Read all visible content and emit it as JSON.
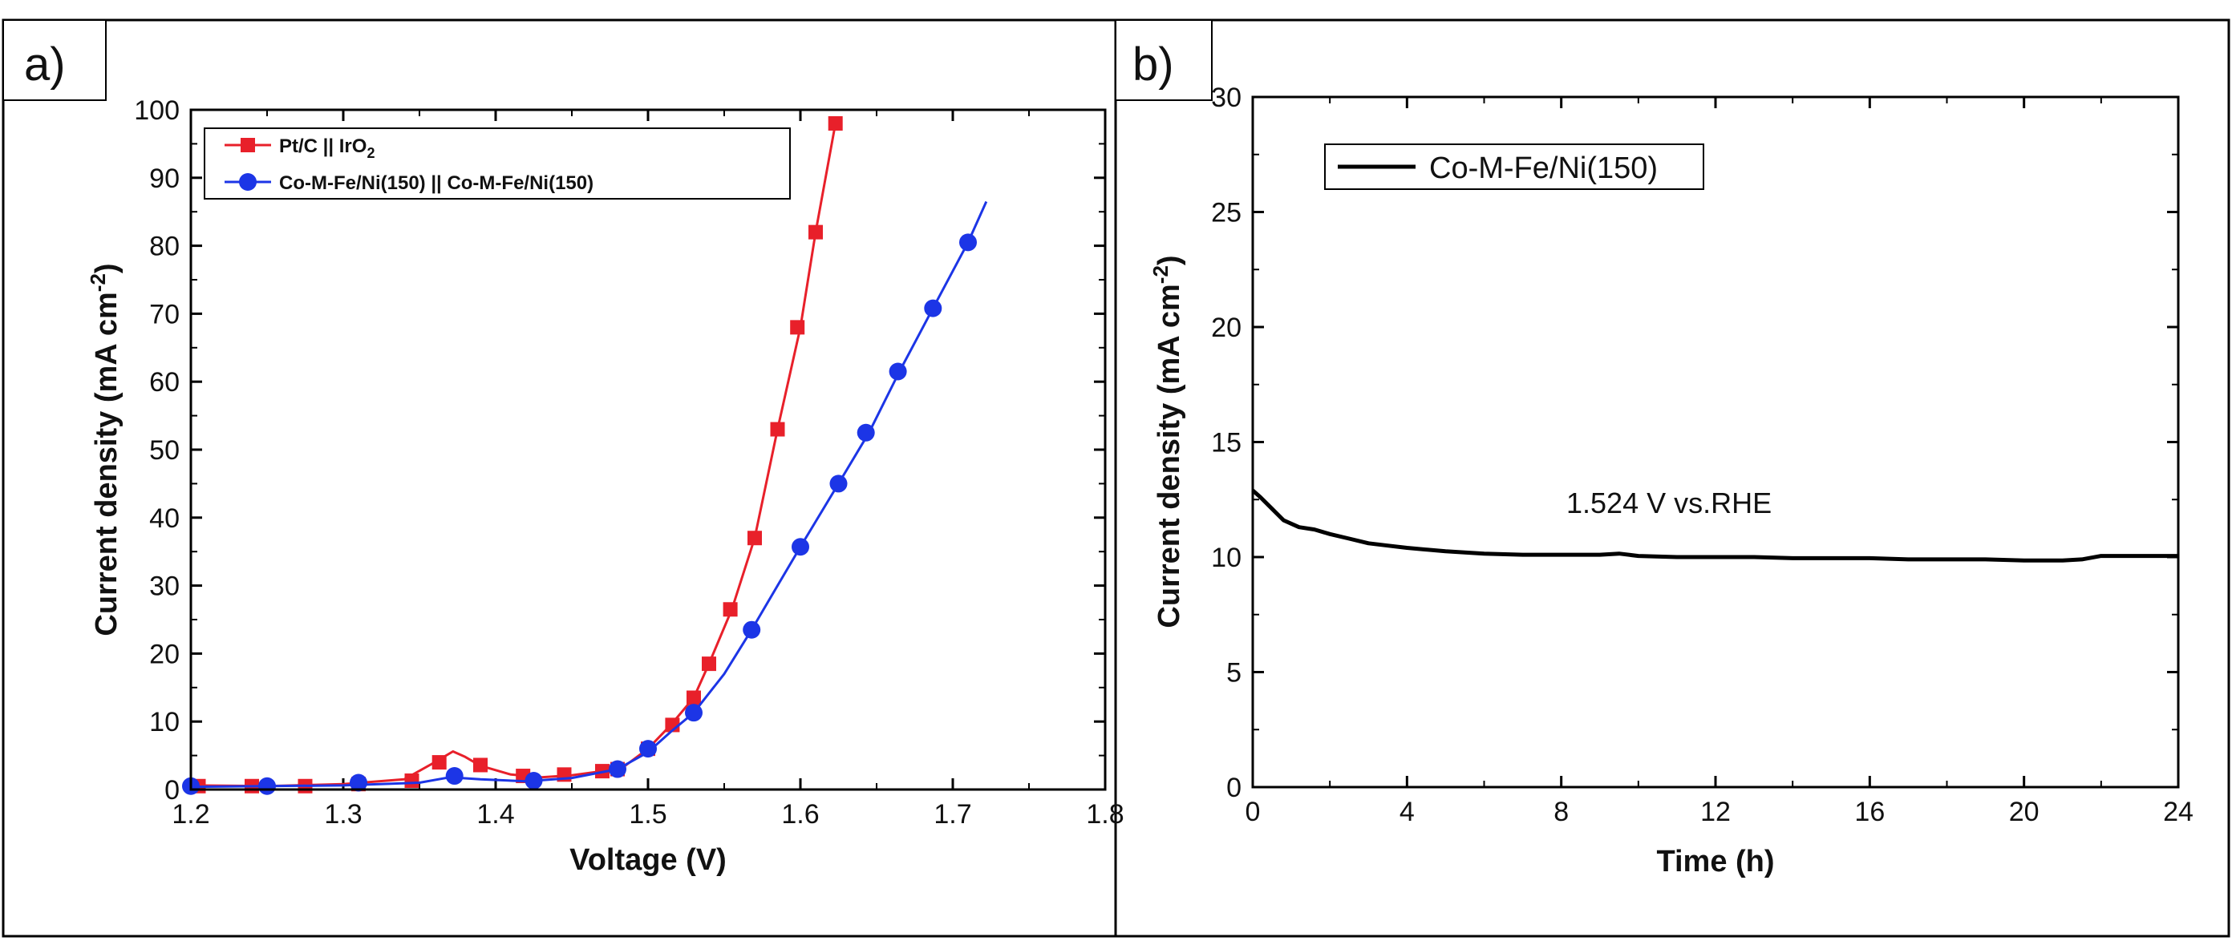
{
  "chart_data": [
    {
      "type": "line",
      "panel_label": "a)",
      "xlabel": "Voltage (V)",
      "ylabel": "Current density (mA cm",
      "ylabel_sup": "-2",
      "ylabel_close": ")",
      "xlim": [
        1.2,
        1.8
      ],
      "ylim": [
        0,
        100
      ],
      "xticks": [
        "1.2",
        "1.3",
        "1.4",
        "1.5",
        "1.6",
        "1.7",
        "1.8"
      ],
      "yticks": [
        "0",
        "10",
        "20",
        "30",
        "40",
        "50",
        "60",
        "70",
        "80",
        "90",
        "100"
      ],
      "legend_position": "top-left",
      "series": [
        {
          "name": "Pt/C || IrO",
          "name_sub": "2",
          "color": "#e8202a",
          "marker": "square",
          "line": [
            [
              1.2,
              0.6
            ],
            [
              1.25,
              0.5
            ],
            [
              1.3,
              0.8
            ],
            [
              1.34,
              1.5
            ],
            [
              1.36,
              4.0
            ],
            [
              1.372,
              5.6
            ],
            [
              1.38,
              4.8
            ],
            [
              1.39,
              3.5
            ],
            [
              1.41,
              2.2
            ],
            [
              1.43,
              1.8
            ],
            [
              1.45,
              2.1
            ],
            [
              1.47,
              2.7
            ],
            [
              1.485,
              3.5
            ],
            [
              1.5,
              6.0
            ],
            [
              1.515,
              9.5
            ],
            [
              1.53,
              13.5
            ],
            [
              1.54,
              18.5
            ],
            [
              1.555,
              26.5
            ],
            [
              1.57,
              37.0
            ],
            [
              1.585,
              53.0
            ],
            [
              1.6,
              68.0
            ],
            [
              1.61,
              82.0
            ],
            [
              1.623,
              98.0
            ]
          ],
          "markers": [
            [
              1.205,
              0.5
            ],
            [
              1.24,
              0.5
            ],
            [
              1.275,
              0.5
            ],
            [
              1.31,
              0.8
            ],
            [
              1.345,
              1.3
            ],
            [
              1.363,
              4.0
            ],
            [
              1.39,
              3.6
            ],
            [
              1.418,
              2.0
            ],
            [
              1.445,
              2.2
            ],
            [
              1.47,
              2.7
            ],
            [
              1.48,
              3.0
            ],
            [
              1.5,
              6.0
            ],
            [
              1.516,
              9.5
            ],
            [
              1.53,
              13.5
            ],
            [
              1.54,
              18.5
            ],
            [
              1.554,
              26.5
            ],
            [
              1.57,
              37.0
            ],
            [
              1.585,
              53.0
            ],
            [
              1.598,
              68.0
            ],
            [
              1.61,
              82.0
            ],
            [
              1.623,
              98.0
            ]
          ]
        },
        {
          "name": "Co-M-Fe/Ni(150) || Co-M-Fe/Ni(150)",
          "color": "#1c35e6",
          "marker": "circle",
          "line": [
            [
              1.2,
              0.4
            ],
            [
              1.3,
              0.6
            ],
            [
              1.35,
              1.0
            ],
            [
              1.37,
              1.8
            ],
            [
              1.39,
              1.5
            ],
            [
              1.42,
              1.2
            ],
            [
              1.45,
              1.7
            ],
            [
              1.48,
              3.0
            ],
            [
              1.5,
              5.5
            ],
            [
              1.515,
              8.5
            ],
            [
              1.53,
              11.3
            ],
            [
              1.55,
              17.0
            ],
            [
              1.568,
              23.5
            ],
            [
              1.585,
              30.0
            ],
            [
              1.6,
              35.7
            ],
            [
              1.625,
              45.0
            ],
            [
              1.645,
              52.5
            ],
            [
              1.665,
              61.5
            ],
            [
              1.687,
              70.8
            ],
            [
              1.71,
              80.5
            ],
            [
              1.722,
              86.5
            ]
          ],
          "markers": [
            [
              1.2,
              0.5
            ],
            [
              1.25,
              0.5
            ],
            [
              1.31,
              1.0
            ],
            [
              1.373,
              2.0
            ],
            [
              1.425,
              1.3
            ],
            [
              1.48,
              3.0
            ],
            [
              1.5,
              6.0
            ],
            [
              1.53,
              11.3
            ],
            [
              1.568,
              23.5
            ],
            [
              1.6,
              35.7
            ],
            [
              1.625,
              45.0
            ],
            [
              1.643,
              52.5
            ],
            [
              1.664,
              61.5
            ],
            [
              1.687,
              70.8
            ],
            [
              1.71,
              80.5
            ]
          ]
        }
      ]
    },
    {
      "type": "line",
      "panel_label": "b)",
      "xlabel": "Time (h)",
      "ylabel": "Current density (mA cm",
      "ylabel_sup": "-2",
      "ylabel_close": ")",
      "xlim": [
        0,
        24
      ],
      "ylim": [
        0,
        30
      ],
      "xticks": [
        "0",
        "4",
        "8",
        "12",
        "16",
        "20",
        "24"
      ],
      "yticks": [
        "0",
        "5",
        "10",
        "15",
        "20",
        "25",
        "30"
      ],
      "legend_position": "top-left",
      "annotation": "1.524 V vs.RHE",
      "series": [
        {
          "name": "Co-M-Fe/Ni(150)",
          "color": "#000000",
          "marker": "none",
          "line": [
            [
              0,
              12.9
            ],
            [
              0.2,
              12.6
            ],
            [
              0.5,
              12.1
            ],
            [
              0.8,
              11.6
            ],
            [
              1.2,
              11.3
            ],
            [
              1.6,
              11.2
            ],
            [
              2.0,
              11.0
            ],
            [
              2.5,
              10.8
            ],
            [
              3.0,
              10.6
            ],
            [
              3.5,
              10.5
            ],
            [
              4.0,
              10.4
            ],
            [
              5.0,
              10.25
            ],
            [
              6.0,
              10.15
            ],
            [
              7.0,
              10.1
            ],
            [
              8.0,
              10.1
            ],
            [
              9.0,
              10.1
            ],
            [
              9.5,
              10.15
            ],
            [
              10.0,
              10.05
            ],
            [
              11.0,
              10.0
            ],
            [
              12.0,
              10.0
            ],
            [
              13.0,
              10.0
            ],
            [
              14.0,
              9.95
            ],
            [
              15.0,
              9.95
            ],
            [
              16.0,
              9.95
            ],
            [
              17.0,
              9.9
            ],
            [
              18.0,
              9.9
            ],
            [
              19.0,
              9.9
            ],
            [
              20.0,
              9.85
            ],
            [
              21.0,
              9.85
            ],
            [
              21.5,
              9.9
            ],
            [
              22.0,
              10.05
            ],
            [
              23.0,
              10.05
            ],
            [
              24.0,
              10.05
            ]
          ]
        }
      ]
    }
  ]
}
